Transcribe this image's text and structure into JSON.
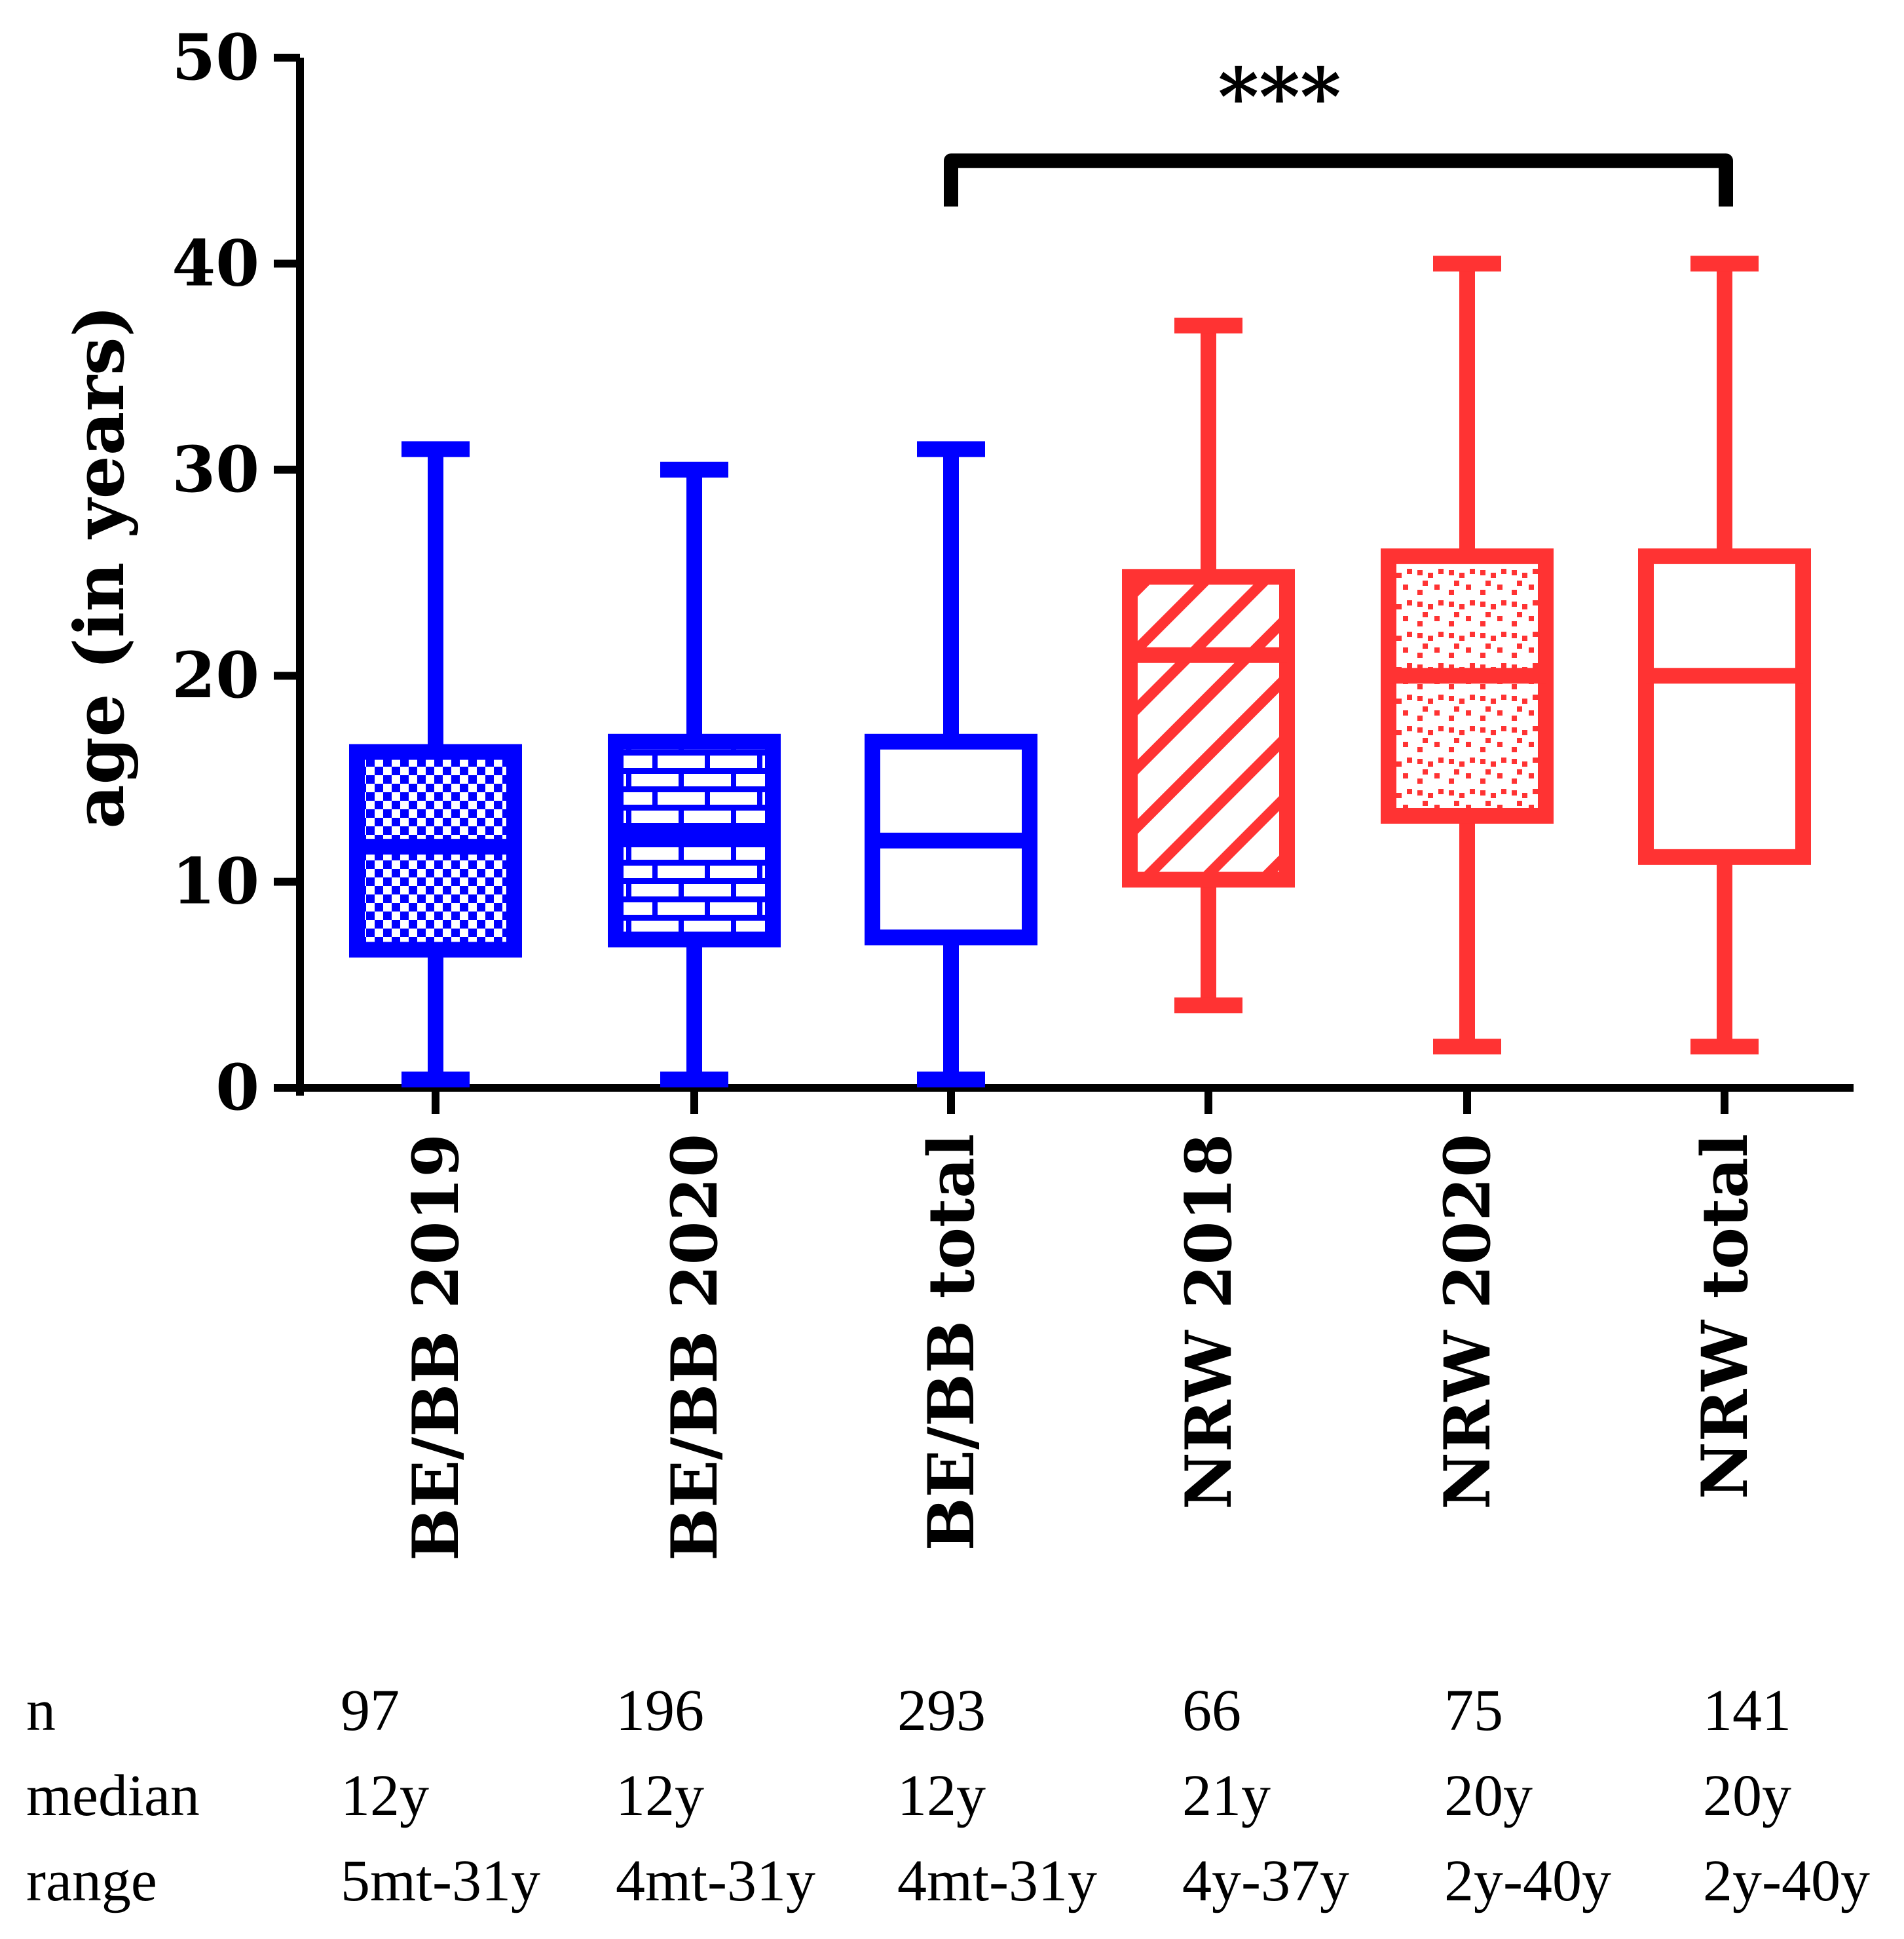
{
  "chart_data": {
    "type": "box",
    "title": "",
    "xlabel": "",
    "ylabel": "age (in years)",
    "ylim": [
      0,
      50
    ],
    "yticks": [
      0,
      10,
      20,
      30,
      40,
      50
    ],
    "grid": false,
    "categories": [
      "BE/BB 2019",
      "BE/BB 2020",
      "BE/BB total",
      "NRW 2018",
      "NRW 2020",
      "NRW total"
    ],
    "boxes": [
      {
        "name": "BE/BB 2019",
        "min": 0.4,
        "q1": 6.7,
        "median": 11.7,
        "q3": 16.3,
        "max": 31,
        "color": "#0000ff",
        "pattern": "checker"
      },
      {
        "name": "BE/BB 2020",
        "min": 0.4,
        "q1": 7.2,
        "median": 12.3,
        "q3": 16.8,
        "max": 30,
        "color": "#0000ff",
        "pattern": "brick"
      },
      {
        "name": "BE/BB total",
        "min": 0.4,
        "q1": 7.3,
        "median": 12.0,
        "q3": 16.8,
        "max": 31,
        "color": "#0000ff",
        "pattern": "none"
      },
      {
        "name": "NRW 2018",
        "min": 4.0,
        "q1": 10.1,
        "median": 21.0,
        "q3": 24.8,
        "max": 37,
        "color": "#ff3333",
        "pattern": "diagonal"
      },
      {
        "name": "NRW 2020",
        "min": 2.0,
        "q1": 13.2,
        "median": 20.0,
        "q3": 25.8,
        "max": 40,
        "color": "#ff3333",
        "pattern": "dots"
      },
      {
        "name": "NRW total",
        "min": 2.0,
        "q1": 11.2,
        "median": 20.0,
        "q3": 25.8,
        "max": 40,
        "color": "#ff3333",
        "pattern": "none"
      }
    ],
    "significance": {
      "label": "***",
      "from": "BE/BB total",
      "to": "NRW total",
      "level": 45
    }
  },
  "stats_table": {
    "row_labels": [
      "n",
      "median",
      "range"
    ],
    "columns": [
      {
        "n": "97",
        "median": "12y",
        "range": "5mt-31y"
      },
      {
        "n": "196",
        "median": "12y",
        "range": "4mt-31y"
      },
      {
        "n": "293",
        "median": "12y",
        "range": "4mt-31y"
      },
      {
        "n": "66",
        "median": "21y",
        "range": "4y-37y"
      },
      {
        "n": "75",
        "median": "20y",
        "range": "2y-40y"
      },
      {
        "n": "141",
        "median": "20y",
        "range": "2y-40y"
      }
    ]
  },
  "colors": {
    "blue": "#0000ff",
    "red": "#ff3333",
    "axis": "#000000"
  }
}
